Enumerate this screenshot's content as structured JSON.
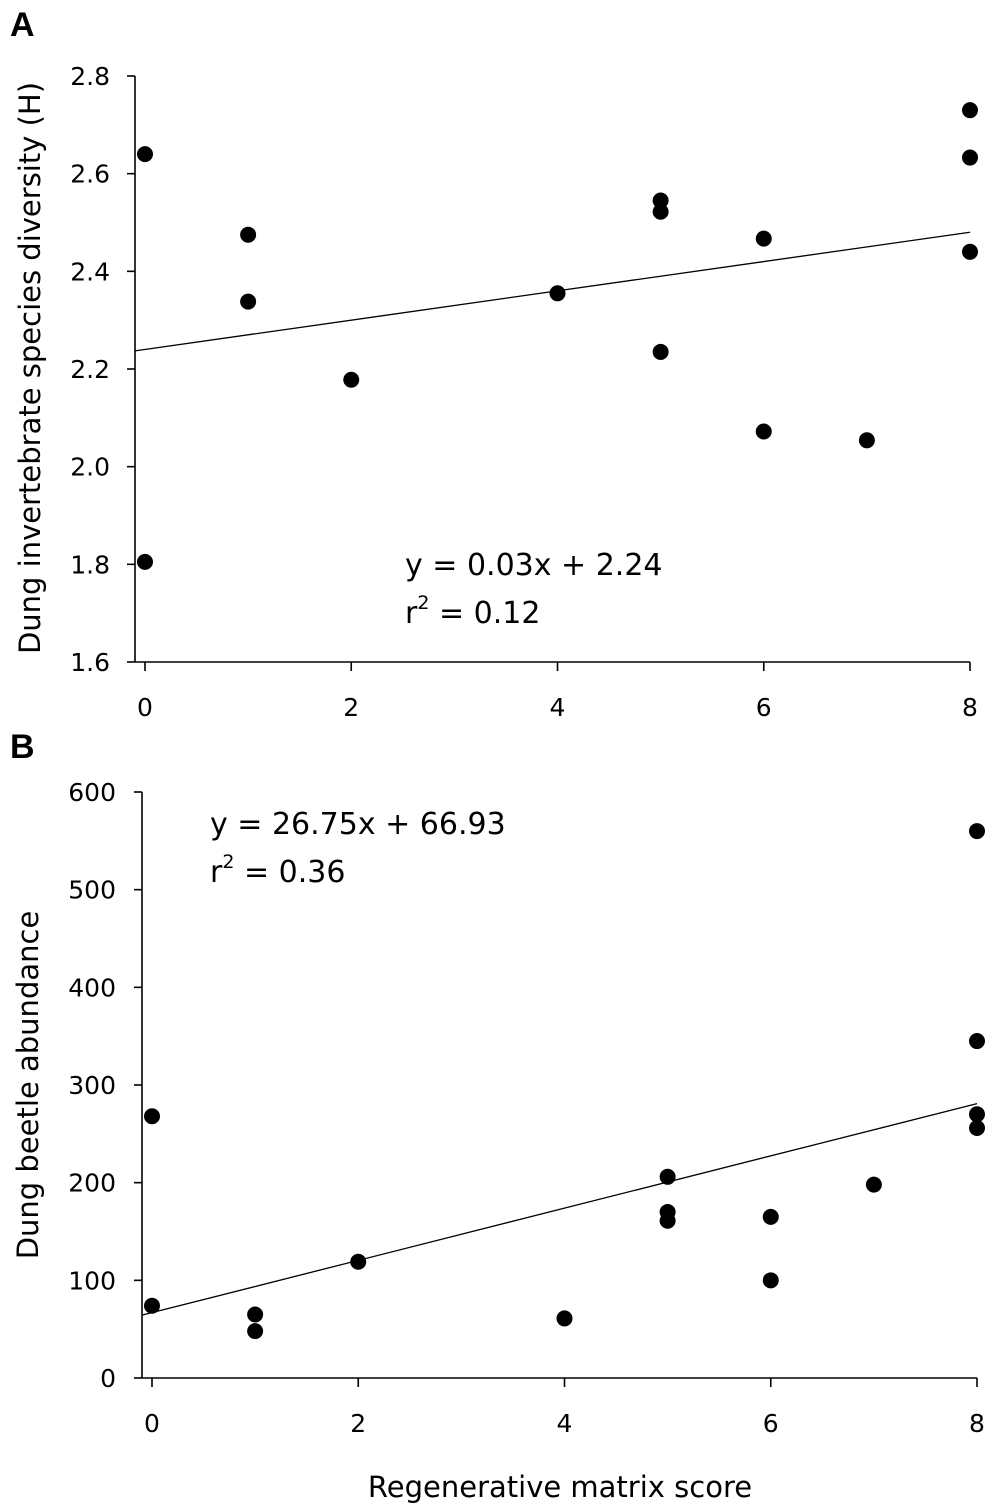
{
  "chart_data": [
    {
      "type": "scatter",
      "panel": "A",
      "ylabel": "Dung invertebrate species diversity (H)",
      "xlabel": "",
      "xlim": [
        0,
        8
      ],
      "ylim": [
        1.6,
        2.8
      ],
      "xticks": [
        "0",
        "2",
        "4",
        "6",
        "8"
      ],
      "yticks": [
        "1.6",
        "1.8",
        "2.0",
        "2.2",
        "2.4",
        "2.6",
        "2.8"
      ],
      "series": [
        {
          "points": [
            {
              "x": 0,
              "y": 2.64
            },
            {
              "x": 0,
              "y": 1.805
            },
            {
              "x": 1,
              "y": 2.475
            },
            {
              "x": 1,
              "y": 2.338
            },
            {
              "x": 2,
              "y": 2.178
            },
            {
              "x": 4,
              "y": 2.355
            },
            {
              "x": 5,
              "y": 2.545
            },
            {
              "x": 5,
              "y": 2.522
            },
            {
              "x": 5,
              "y": 2.235
            },
            {
              "x": 6,
              "y": 2.467
            },
            {
              "x": 6,
              "y": 2.072
            },
            {
              "x": 7,
              "y": 2.054
            },
            {
              "x": 8,
              "y": 2.73
            },
            {
              "x": 8,
              "y": 2.633
            },
            {
              "x": 8,
              "y": 2.44
            }
          ]
        }
      ],
      "trendline": {
        "slope": 0.03,
        "intercept": 2.24
      },
      "equation": "y = 0.03x + 2.24",
      "r2_prefix": "r",
      "r2_sup": "2",
      "r2_value": " = 0.12"
    },
    {
      "type": "scatter",
      "panel": "B",
      "ylabel": "Dung beetle abundance",
      "xlabel": "Regenerative matrix score",
      "xlim": [
        0,
        8
      ],
      "ylim": [
        0,
        600
      ],
      "xticks": [
        "0",
        "2",
        "4",
        "6",
        "8"
      ],
      "yticks": [
        "0",
        "100",
        "200",
        "300",
        "400",
        "500",
        "600"
      ],
      "series": [
        {
          "points": [
            {
              "x": 0,
              "y": 268
            },
            {
              "x": 0,
              "y": 74
            },
            {
              "x": 1,
              "y": 65
            },
            {
              "x": 1,
              "y": 48
            },
            {
              "x": 2,
              "y": 119
            },
            {
              "x": 4,
              "y": 61
            },
            {
              "x": 5,
              "y": 206
            },
            {
              "x": 5,
              "y": 170
            },
            {
              "x": 5,
              "y": 161
            },
            {
              "x": 6,
              "y": 165
            },
            {
              "x": 6,
              "y": 100
            },
            {
              "x": 7,
              "y": 198
            },
            {
              "x": 8,
              "y": 560
            },
            {
              "x": 8,
              "y": 345
            },
            {
              "x": 8,
              "y": 270
            },
            {
              "x": 8,
              "y": 256
            }
          ]
        }
      ],
      "trendline": {
        "slope": 26.75,
        "intercept": 66.93
      },
      "equation": "y = 26.75x + 66.93",
      "r2_prefix": "r",
      "r2_sup": "2",
      "r2_value": " = 0.36"
    }
  ]
}
